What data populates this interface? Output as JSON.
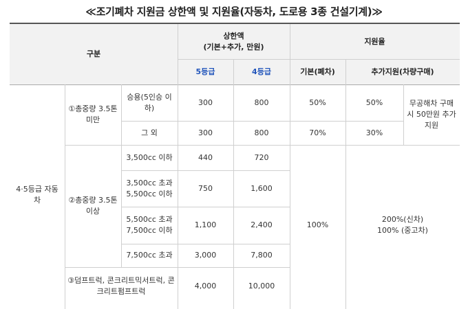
{
  "title": "≪조기폐차 지원금 상한액 및 지원율(자동차, 도로용 3종 건설기계)≫",
  "header": {
    "category": "구분",
    "cap_l1": "상한액",
    "cap_l2": "(기본+추가, 만원)",
    "grade5": "5등급",
    "grade4": "4등급",
    "rate": "지원율",
    "basic": "기본(폐차)",
    "extra": "추가지원(차량구매)"
  },
  "rows": {
    "vehicle_class_l1": "4·5등급 자동",
    "vehicle_class_l2": "차",
    "g1_l1": "①총중량 3.5톤",
    "g1_l2": "미만",
    "g1_r1_l1": "승용(5인승 이",
    "g1_r1_l2": "하)",
    "g1_r1_g5": "300",
    "g1_r1_g4": "800",
    "g1_r1_basic": "50%",
    "g1_r1_extra": "50%",
    "g1_note_l1": "무공해차 구매",
    "g1_note_l2": "시 50만원 추가",
    "g1_note_l3": "지원",
    "g1_r2": "그 외",
    "g1_r2_g5": "300",
    "g1_r2_g4": "800",
    "g1_r2_basic": "70%",
    "g1_r2_extra": "30%",
    "g2_l1": "②총중량 3.5톤",
    "g2_l2": "이상",
    "g2_r1": "3,500cc 이하",
    "g2_r1_g5": "440",
    "g2_r1_g4": "720",
    "g2_r2_l1": "3,500cc 초과",
    "g2_r2_l2": "5,500cc 이하",
    "g2_r2_g5": "750",
    "g2_r2_g4": "1,600",
    "g2_r3_l1": "5,500cc 초과",
    "g2_r3_l2": "7,500cc 이하",
    "g2_r3_g5": "1,100",
    "g2_r3_g4": "2,400",
    "g2_r4": "7,500cc 초과",
    "g2_r4_g5": "3,000",
    "g2_r4_g4": "7,800",
    "g2_basic": "100%",
    "g2_extra_l1": "200%(신차)",
    "g2_extra_l2": "100% (중고차)",
    "g3_l1": "③덤프트럭, 콘크리트믹서트럭, 콘",
    "g3_l2": "크리트펌프트럭",
    "g3_g5": "4,000",
    "g3_g4": "10,000"
  }
}
